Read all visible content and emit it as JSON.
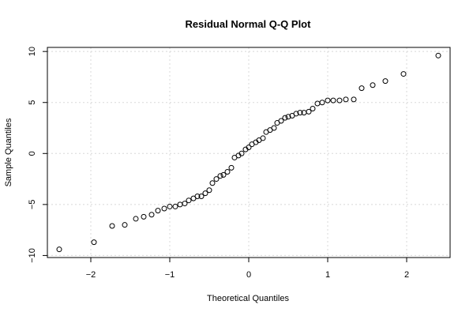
{
  "chart_data": {
    "type": "scatter",
    "title": "Residual Normal Q-Q Plot",
    "xlabel": "Theoretical Quantiles",
    "ylabel": "Sample Quantiles",
    "xlim": [
      -2.55,
      2.55
    ],
    "ylim": [
      -10.2,
      10.4
    ],
    "xticks": [
      -2,
      -1,
      0,
      1,
      2
    ],
    "xtick_labels": [
      "−2",
      "−1",
      "0",
      "1",
      "2"
    ],
    "yticks": [
      -10,
      -5,
      0,
      5,
      10
    ],
    "ytick_labels": [
      "−10",
      "−5",
      "0",
      "5",
      "10"
    ],
    "grid": true,
    "series": [
      {
        "x": [
          -2.4,
          -1.96,
          -1.73,
          -1.57,
          -1.43,
          -1.33,
          -1.23,
          -1.15,
          -1.07,
          -1.0,
          -0.93,
          -0.87,
          -0.81,
          -0.76,
          -0.7,
          -0.65,
          -0.6,
          -0.55,
          -0.5,
          -0.46,
          -0.41,
          -0.36,
          -0.32,
          -0.27,
          -0.22,
          -0.18,
          -0.13,
          -0.09,
          -0.04,
          0.0,
          0.04,
          0.09,
          0.13,
          0.18,
          0.22,
          0.27,
          0.32,
          0.36,
          0.41,
          0.46,
          0.5,
          0.55,
          0.6,
          0.65,
          0.7,
          0.76,
          0.81,
          0.87,
          0.93,
          1.0,
          1.07,
          1.15,
          1.23,
          1.33,
          1.43,
          1.57,
          1.73,
          1.96,
          2.4
        ],
        "y": [
          -9.4,
          -8.7,
          -7.1,
          -7.0,
          -6.4,
          -6.2,
          -6.0,
          -5.6,
          -5.4,
          -5.2,
          -5.2,
          -5.0,
          -4.9,
          -4.6,
          -4.4,
          -4.2,
          -4.2,
          -3.9,
          -3.6,
          -2.9,
          -2.5,
          -2.2,
          -2.1,
          -1.8,
          -1.4,
          -0.4,
          -0.2,
          0.0,
          0.4,
          0.6,
          0.9,
          1.1,
          1.3,
          1.5,
          2.1,
          2.3,
          2.5,
          3.0,
          3.2,
          3.5,
          3.6,
          3.7,
          3.9,
          4.0,
          4.0,
          4.1,
          4.4,
          4.9,
          5.0,
          5.2,
          5.2,
          5.2,
          5.3,
          5.3,
          6.4,
          6.7,
          7.1,
          7.8,
          9.6
        ]
      }
    ]
  }
}
